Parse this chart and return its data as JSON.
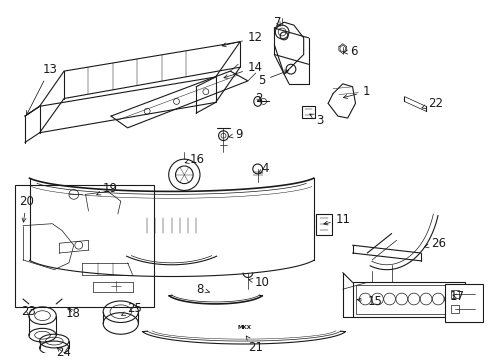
{
  "background_color": "#ffffff",
  "line_color": "#1a1a1a",
  "fig_width": 4.89,
  "fig_height": 3.6,
  "dpi": 100,
  "font_size": 8.5,
  "label_color": "#111111"
}
